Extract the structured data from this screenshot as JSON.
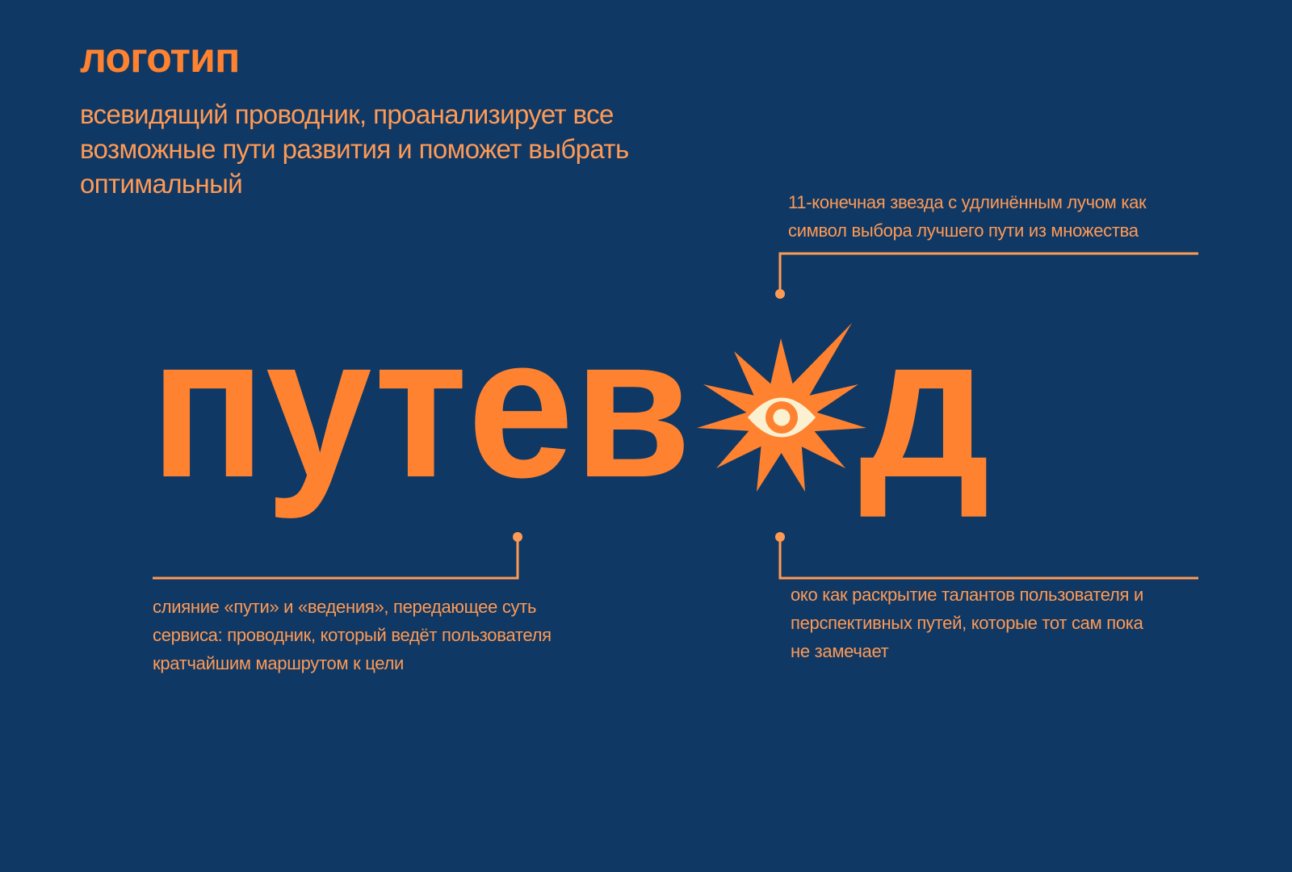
{
  "heading": "логотип",
  "description": "всевидящий проводник, проанализирует все возможные пути развития и поможет выбрать оптимальный",
  "logo": {
    "wordmark_left": "путев",
    "wordmark_right": "д",
    "symbol": "eleven-point-star-with-eye-icon"
  },
  "annotations": {
    "star": [
      "11-конечная звезда с удлинённым лучом как",
      "символ выбора лучшего пути из множества"
    ],
    "name": [
      "слияние «пути» и «ведения», передающее суть",
      "сервиса:  проводник, который ведёт пользователя",
      "кратчайшим маршрутом к цели"
    ],
    "eye": [
      "око как раскрытие талантов пользователя и",
      "перспективных путей, которые тот сам пока",
      "не замечает"
    ]
  },
  "colors": {
    "background": "#0f3864",
    "accent": "#ff8230",
    "text": "#ff9a55",
    "eye": "#fbf0d0"
  }
}
